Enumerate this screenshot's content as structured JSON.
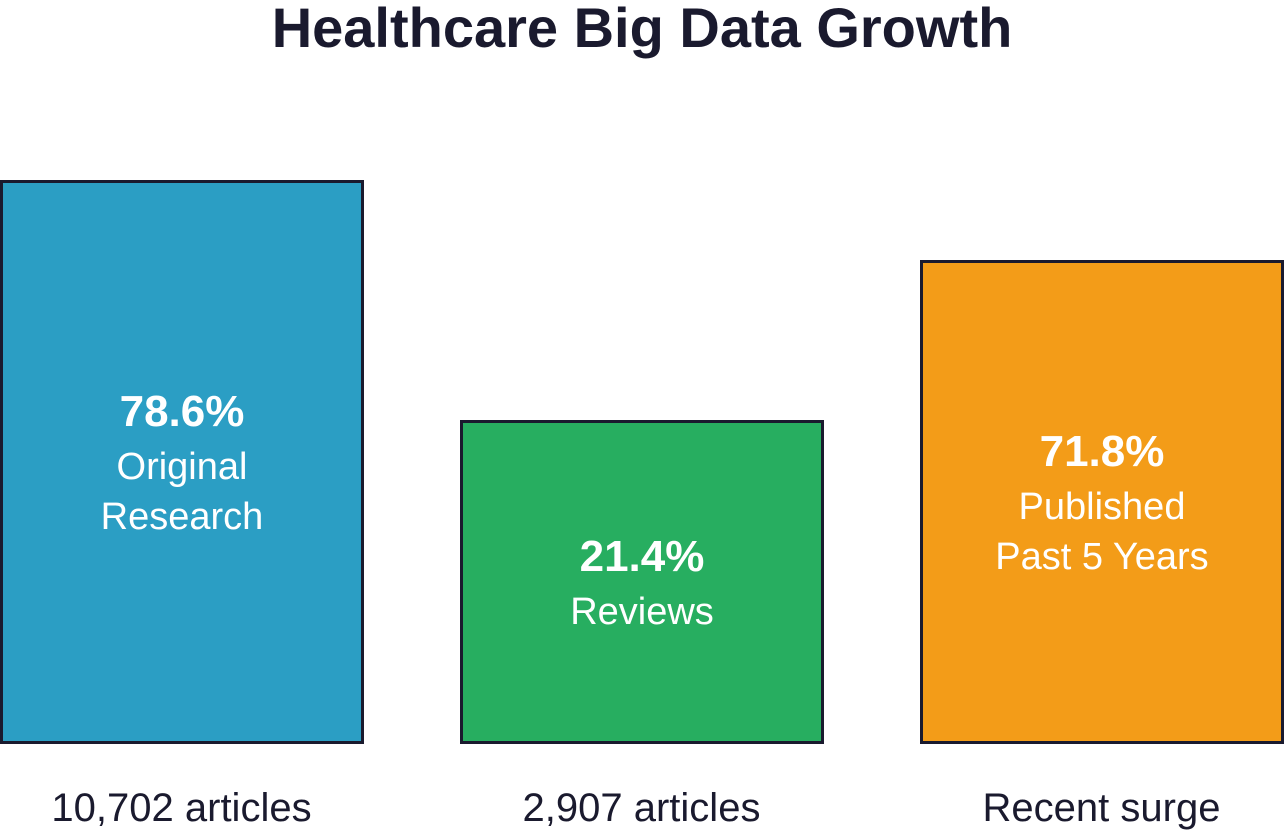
{
  "title": "Healthcare Big Data Growth",
  "panels": [
    {
      "value": "78.6%",
      "label_lines": [
        "Original",
        "Research"
      ],
      "caption": "10,702 articles"
    },
    {
      "value": "21.4%",
      "label_lines": [
        "Reviews"
      ],
      "caption": "2,907 articles"
    },
    {
      "value": "71.8%",
      "label_lines": [
        "Published",
        "Past 5 Years"
      ],
      "caption": "Recent surge"
    }
  ]
}
